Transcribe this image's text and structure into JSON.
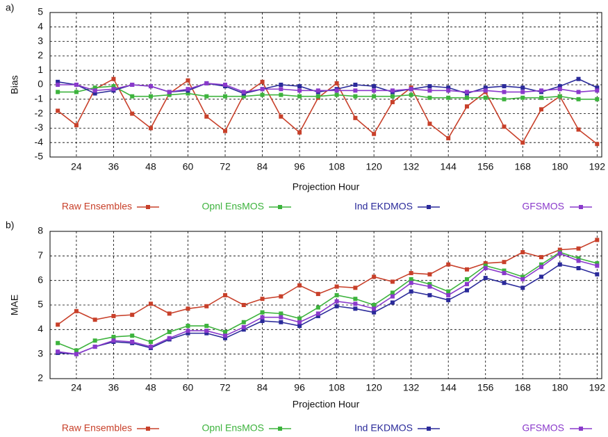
{
  "chart_data": [
    {
      "type": "line",
      "panel_label": "a)",
      "ylabel": "Bias",
      "xlabel": "Projection Hour",
      "x": [
        18,
        24,
        30,
        36,
        42,
        48,
        54,
        60,
        66,
        72,
        78,
        84,
        90,
        96,
        102,
        108,
        114,
        120,
        126,
        132,
        138,
        144,
        150,
        156,
        162,
        168,
        174,
        180,
        186,
        192
      ],
      "xlim": [
        15.5,
        193.5
      ],
      "xticks": [
        24,
        36,
        48,
        60,
        72,
        84,
        96,
        108,
        120,
        132,
        144,
        156,
        168,
        180,
        192
      ],
      "ylim": [
        -5,
        5
      ],
      "yticks": [
        -5,
        -4,
        -3,
        -2,
        -1,
        0,
        1,
        2,
        3,
        4,
        5
      ],
      "grid": true,
      "series": [
        {
          "name": "Raw Ensembles",
          "color": "#c8402a",
          "values": [
            -1.8,
            -2.8,
            -0.3,
            0.4,
            -2.0,
            -3.0,
            -0.6,
            0.3,
            -2.2,
            -3.2,
            -0.7,
            0.2,
            -2.2,
            -3.3,
            -0.9,
            0.1,
            -2.3,
            -3.4,
            -1.2,
            -0.2,
            -2.7,
            -3.7,
            -1.5,
            -0.5,
            -2.9,
            -4.0,
            -1.7,
            -0.8,
            -3.1,
            -4.1
          ]
        },
        {
          "name": "Opnl EnsMOS",
          "color": "#3db33d",
          "values": [
            -0.5,
            -0.5,
            -0.2,
            -0.1,
            -0.8,
            -0.8,
            -0.7,
            -0.6,
            -0.8,
            -0.8,
            -0.8,
            -0.7,
            -0.7,
            -0.8,
            -0.8,
            -0.7,
            -0.8,
            -0.8,
            -0.8,
            -0.7,
            -0.9,
            -0.9,
            -0.9,
            -0.9,
            -1.0,
            -0.9,
            -0.9,
            -0.8,
            -1.0,
            -1.0
          ]
        },
        {
          "name": "Ind EKDMOS",
          "color": "#2a2a9a",
          "values": [
            0.2,
            0.0,
            -0.6,
            -0.4,
            0.0,
            -0.1,
            -0.5,
            -0.4,
            0.1,
            -0.1,
            -0.6,
            -0.3,
            0.0,
            -0.1,
            -0.5,
            -0.3,
            0.0,
            -0.1,
            -0.5,
            -0.3,
            -0.1,
            -0.2,
            -0.6,
            -0.2,
            -0.1,
            -0.2,
            -0.5,
            -0.1,
            0.4,
            -0.2
          ]
        },
        {
          "name": "GFSMOS",
          "color": "#8a3acb",
          "values": [
            0.0,
            0.0,
            -0.4,
            -0.3,
            0.0,
            -0.1,
            -0.5,
            -0.3,
            0.1,
            0.0,
            -0.5,
            -0.3,
            -0.3,
            -0.4,
            -0.4,
            -0.4,
            -0.4,
            -0.4,
            -0.4,
            -0.3,
            -0.4,
            -0.4,
            -0.5,
            -0.4,
            -0.5,
            -0.5,
            -0.4,
            -0.3,
            -0.5,
            -0.4
          ]
        }
      ]
    },
    {
      "type": "line",
      "panel_label": "b)",
      "ylabel": "MAE",
      "xlabel": "Projection Hour",
      "x": [
        18,
        24,
        30,
        36,
        42,
        48,
        54,
        60,
        66,
        72,
        78,
        84,
        90,
        96,
        102,
        108,
        114,
        120,
        126,
        132,
        138,
        144,
        150,
        156,
        162,
        168,
        174,
        180,
        186,
        192
      ],
      "xlim": [
        15.5,
        193.5
      ],
      "xticks": [
        24,
        36,
        48,
        60,
        72,
        84,
        96,
        108,
        120,
        132,
        144,
        156,
        168,
        180,
        192
      ],
      "ylim": [
        2,
        8
      ],
      "yticks": [
        2,
        3,
        4,
        5,
        6,
        7,
        8
      ],
      "grid": true,
      "series": [
        {
          "name": "Raw Ensembles",
          "color": "#c8402a",
          "values": [
            4.2,
            4.75,
            4.4,
            4.55,
            4.6,
            5.05,
            4.65,
            4.85,
            4.95,
            5.4,
            5.0,
            5.25,
            5.35,
            5.8,
            5.45,
            5.75,
            5.7,
            6.15,
            5.95,
            6.3,
            6.25,
            6.65,
            6.45,
            6.7,
            6.75,
            7.15,
            6.95,
            7.25,
            7.3,
            7.65
          ]
        },
        {
          "name": "Opnl EnsMOS",
          "color": "#3db33d",
          "values": [
            3.45,
            3.15,
            3.55,
            3.7,
            3.75,
            3.5,
            3.9,
            4.15,
            4.15,
            3.9,
            4.3,
            4.7,
            4.65,
            4.45,
            4.9,
            5.4,
            5.25,
            5.0,
            5.5,
            6.05,
            5.85,
            5.55,
            6.05,
            6.6,
            6.4,
            6.15,
            6.65,
            7.15,
            6.9,
            6.7
          ]
        },
        {
          "name": "Ind EKDMOS",
          "color": "#2a2a9a",
          "values": [
            3.05,
            3.0,
            3.3,
            3.5,
            3.45,
            3.25,
            3.6,
            3.85,
            3.85,
            3.65,
            4.0,
            4.35,
            4.3,
            4.15,
            4.55,
            4.95,
            4.85,
            4.7,
            5.1,
            5.55,
            5.4,
            5.2,
            5.6,
            6.1,
            5.9,
            5.7,
            6.15,
            6.65,
            6.5,
            6.25
          ]
        },
        {
          "name": "GFSMOS",
          "color": "#8a3acb",
          "values": [
            3.1,
            3.0,
            3.3,
            3.55,
            3.5,
            3.3,
            3.65,
            3.95,
            3.95,
            3.75,
            4.1,
            4.5,
            4.5,
            4.3,
            4.65,
            5.15,
            5.05,
            4.85,
            5.35,
            5.9,
            5.75,
            5.4,
            5.85,
            6.5,
            6.3,
            6.05,
            6.55,
            7.1,
            6.8,
            6.6
          ]
        }
      ]
    }
  ]
}
